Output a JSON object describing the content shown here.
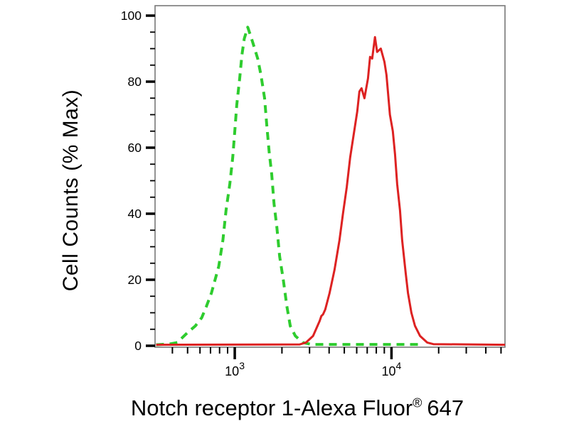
{
  "figure": {
    "background": "#ffffff",
    "ylabel": "Cell Counts (% Max)",
    "xlabel_main": "Notch receptor 1-Alexa Fluor",
    "xlabel_reg": "®",
    "xlabel_suffix": "647"
  },
  "chart_data": {
    "type": "line",
    "subtype": "flow-cytometry-overlay-histogram",
    "title": "",
    "xlabel": "Notch receptor 1-Alexa Fluor® 647",
    "ylabel": "Cell Counts (% Max)",
    "x_scale": "log10",
    "x_range": [
      310,
      53000
    ],
    "ylim": [
      0,
      100
    ],
    "y_major_ticks": [
      0,
      20,
      40,
      60,
      80,
      100
    ],
    "y_minor_step": 5,
    "x_major_ticks": [
      {
        "value": 1000,
        "base": "10",
        "exp": "3"
      },
      {
        "value": 10000,
        "base": "10",
        "exp": "4"
      }
    ],
    "grid": false,
    "legend": "none",
    "frame_color": "#787878",
    "tick_color": "#000000",
    "label_color": "#000000",
    "series": [
      {
        "name": "green-dashed-control",
        "color": "#2ecc2e",
        "line_style": "dashed",
        "line_width": 4,
        "peak": {
          "x": 1210,
          "pct": 96.5
        },
        "points": [
          [
            315,
            0.3
          ],
          [
            390,
            0.6
          ],
          [
            430,
            1
          ],
          [
            500,
            4
          ],
          [
            560,
            6
          ],
          [
            615,
            8.5
          ],
          [
            660,
            12
          ],
          [
            710,
            16
          ],
          [
            790,
            24
          ],
          [
            840,
            32
          ],
          [
            880,
            41
          ],
          [
            930,
            49
          ],
          [
            970,
            57
          ],
          [
            1000,
            65
          ],
          [
            1030,
            73
          ],
          [
            1075,
            81
          ],
          [
            1110,
            88
          ],
          [
            1150,
            93
          ],
          [
            1210,
            96.5
          ],
          [
            1300,
            92
          ],
          [
            1400,
            87
          ],
          [
            1470,
            82
          ],
          [
            1550,
            75
          ],
          [
            1600,
            67
          ],
          [
            1655,
            59
          ],
          [
            1720,
            52
          ],
          [
            1780,
            43
          ],
          [
            1855,
            36
          ],
          [
            1935,
            27
          ],
          [
            2040,
            20
          ],
          [
            2150,
            12
          ],
          [
            2260,
            6
          ],
          [
            2435,
            3
          ],
          [
            2710,
            1
          ],
          [
            3100,
            0.4
          ],
          [
            15800,
            0.4
          ]
        ]
      },
      {
        "name": "red-solid-stained",
        "color": "#dd2222",
        "line_style": "solid",
        "line_width": 3,
        "peak": {
          "x": 7850,
          "pct": 93.5
        },
        "points": [
          [
            315,
            0.3
          ],
          [
            2600,
            0.4
          ],
          [
            2850,
            1
          ],
          [
            3160,
            3
          ],
          [
            3480,
            7.5
          ],
          [
            3570,
            9
          ],
          [
            3660,
            9.5
          ],
          [
            3780,
            11
          ],
          [
            4030,
            16
          ],
          [
            4330,
            23
          ],
          [
            4660,
            32
          ],
          [
            4900,
            40
          ],
          [
            5180,
            48
          ],
          [
            5450,
            57
          ],
          [
            5740,
            64
          ],
          [
            6050,
            71
          ],
          [
            6240,
            77
          ],
          [
            6440,
            78
          ],
          [
            6720,
            75
          ],
          [
            7080,
            81
          ],
          [
            7300,
            87.5
          ],
          [
            7530,
            87
          ],
          [
            7850,
            93.5
          ],
          [
            8100,
            89
          ],
          [
            8550,
            90
          ],
          [
            9020,
            86
          ],
          [
            9290,
            82
          ],
          [
            9770,
            70
          ],
          [
            10200,
            65
          ],
          [
            10540,
            58
          ],
          [
            10870,
            49
          ],
          [
            11340,
            41
          ],
          [
            11700,
            32
          ],
          [
            12320,
            22
          ],
          [
            12740,
            16
          ],
          [
            13400,
            10
          ],
          [
            14130,
            6
          ],
          [
            15200,
            3
          ],
          [
            16900,
            1
          ],
          [
            18500,
            0.5
          ],
          [
            53000,
            0.3
          ]
        ]
      }
    ]
  }
}
